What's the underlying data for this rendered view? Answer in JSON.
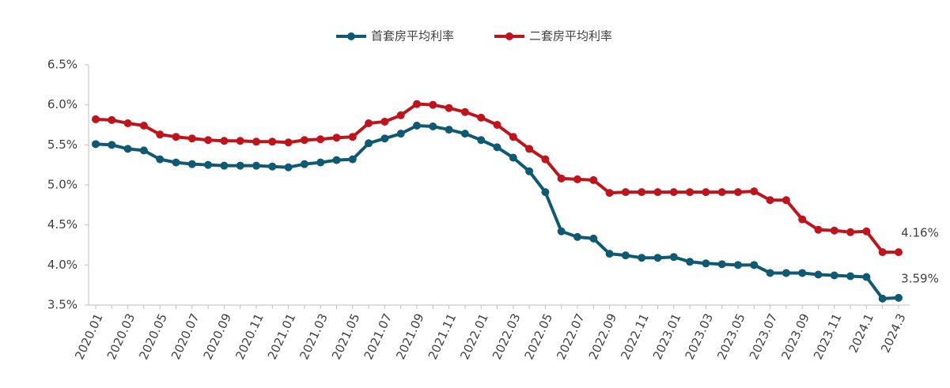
{
  "chart_data": {
    "type": "line",
    "categories": [
      "2020.01",
      null,
      "2020.03",
      null,
      "2020.05",
      null,
      "2020.07",
      null,
      "2020.09",
      null,
      "2020.11",
      null,
      "2021.01",
      null,
      "2021.03",
      null,
      "2021.05",
      null,
      "2021.07",
      null,
      "2021.09",
      null,
      "2021.11",
      null,
      "2022.01",
      null,
      "2022.03",
      null,
      "2022.05",
      null,
      "2022.07",
      null,
      "2022.09",
      null,
      "2022.11",
      null,
      "2023.01",
      null,
      "2023.03",
      null,
      "2023.05",
      null,
      "2023.07",
      null,
      "2023.09",
      null,
      "2023.11",
      null,
      "2024.1",
      null,
      "2024.3"
    ],
    "series": [
      {
        "name": "首套房平均利率",
        "color": "#0e5a73",
        "values": [
          5.51,
          5.5,
          5.45,
          5.43,
          5.32,
          5.28,
          5.26,
          5.25,
          5.24,
          5.24,
          5.24,
          5.23,
          5.22,
          5.26,
          5.28,
          5.31,
          5.32,
          5.52,
          5.58,
          5.64,
          5.74,
          5.73,
          5.69,
          5.64,
          5.56,
          5.47,
          5.34,
          5.17,
          4.91,
          4.42,
          4.35,
          4.33,
          4.14,
          4.12,
          4.09,
          4.09,
          4.1,
          4.04,
          4.02,
          4.01,
          4.0,
          4.0,
          3.9,
          3.9,
          3.9,
          3.88,
          3.87,
          3.86,
          3.85,
          3.58,
          3.59
        ],
        "value_labels": [
          null,
          null,
          null,
          null,
          null,
          null,
          null,
          null,
          null,
          null,
          null,
          null,
          null,
          null,
          null,
          null,
          null,
          null,
          null,
          null,
          null,
          null,
          null,
          null,
          null,
          null,
          null,
          null,
          null,
          null,
          null,
          null,
          null,
          null,
          null,
          null,
          null,
          null,
          null,
          null,
          null,
          null,
          null,
          null,
          null,
          null,
          null,
          null,
          null,
          null,
          "3.59%"
        ]
      },
      {
        "name": "二套房平均利率",
        "color": "#c0141c",
        "values": [
          5.82,
          5.81,
          5.77,
          5.74,
          5.63,
          5.6,
          5.58,
          5.56,
          5.55,
          5.55,
          5.54,
          5.54,
          5.53,
          5.56,
          5.57,
          5.59,
          5.6,
          5.77,
          5.79,
          5.87,
          6.01,
          6.0,
          5.96,
          5.91,
          5.84,
          5.75,
          5.6,
          5.45,
          5.32,
          5.08,
          5.07,
          5.06,
          4.9,
          4.91,
          4.91,
          4.91,
          4.91,
          4.91,
          4.91,
          4.91,
          4.91,
          4.92,
          4.81,
          4.81,
          4.57,
          4.44,
          4.43,
          4.41,
          4.42,
          4.16,
          4.16
        ],
        "value_labels": [
          null,
          null,
          null,
          null,
          null,
          null,
          null,
          null,
          null,
          null,
          null,
          null,
          null,
          null,
          null,
          null,
          null,
          null,
          null,
          null,
          null,
          null,
          null,
          null,
          null,
          null,
          null,
          null,
          null,
          null,
          null,
          null,
          null,
          null,
          null,
          null,
          null,
          null,
          null,
          null,
          null,
          null,
          null,
          null,
          null,
          null,
          null,
          null,
          null,
          null,
          "4.16%"
        ]
      }
    ],
    "ylim": [
      3.5,
      6.5
    ],
    "yticks": [
      {
        "value": 3.5,
        "label": "3.5%"
      },
      {
        "value": 4.0,
        "label": "4.0%"
      },
      {
        "value": 4.5,
        "label": "4.5%"
      },
      {
        "value": 5.0,
        "label": "5.0%"
      },
      {
        "value": 5.5,
        "label": "5.5%"
      },
      {
        "value": 6.0,
        "label": "6.0%"
      },
      {
        "value": 6.5,
        "label": "6.5%"
      }
    ],
    "grid": false,
    "legend": "top"
  }
}
